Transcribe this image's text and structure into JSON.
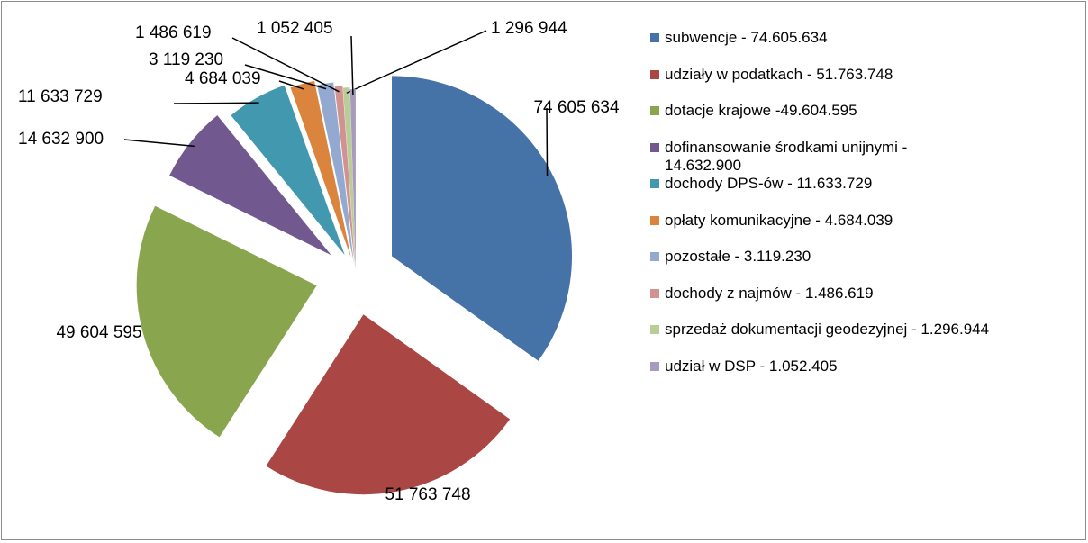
{
  "chart_data": {
    "type": "pie",
    "categories": [
      "subwencje - 74.605.634",
      "udziały w podatkach - 51.763.748",
      "dotacje krajowe -49.604.595",
      "dofinansowanie środkami unijnymi - 14.632.900",
      "dochody DPS-ów - 11.633.729",
      "opłaty komunikacyjne - 4.684.039",
      "pozostałe - 3.119.230",
      "dochody z najmów - 1.486.619",
      "sprzedaż dokumentacji geodezyjnej - 1.296.944",
      "udział w DSP - 1.052.405"
    ],
    "values": [
      74605634,
      51763748,
      49604595,
      14632900,
      11633729,
      4684039,
      3119230,
      1486619,
      1296944,
      1052405
    ],
    "value_labels": [
      "74 605 634",
      "51 763 748",
      "49 604 595",
      "14 632 900",
      "11 633 729",
      "4 684 039",
      "3 119 230",
      "1 486 619",
      "1 296 944",
      "1 052 405"
    ],
    "colors": [
      "#4572a7",
      "#aa4643",
      "#89a54e",
      "#71588f",
      "#4198af",
      "#db843d",
      "#93a9cf",
      "#d19392",
      "#b9cd96",
      "#a99bbd"
    ],
    "legend": "right"
  }
}
